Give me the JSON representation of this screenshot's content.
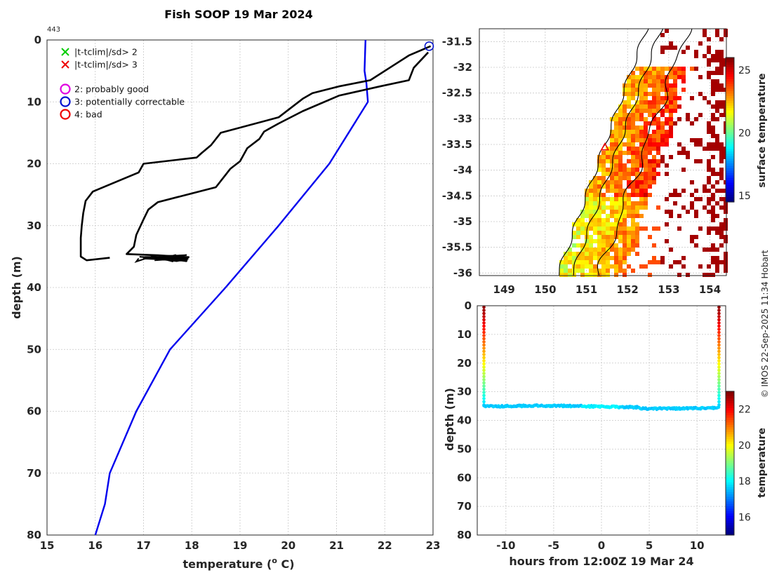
{
  "title": "Fish SOOP 19 Mar 2024",
  "profile_id": "443",
  "credit": "© IMOS 22-Sep-2025 11:34 Hobart",
  "colors": {
    "climatology": "#0000ee",
    "profile": "#000000",
    "flag2": "#e000e0",
    "flag3": "#0010d0",
    "flag4": "#ee0000",
    "flag_sd2": "#00cc00",
    "flag_sd3": "#ee0000",
    "land": "#a40000"
  },
  "legend": [
    {
      "marker": "x",
      "color": "#00cc00",
      "label": "|t-tclim|/sd> 2"
    },
    {
      "marker": "x",
      "color": "#ee0000",
      "label": "|t-tclim|/sd> 3"
    },
    {
      "marker": "o",
      "color": "#e000e0",
      "label": "2: probably good"
    },
    {
      "marker": "o",
      "color": "#0010d0",
      "label": "3: potentially correctable"
    },
    {
      "marker": "o",
      "color": "#ee0000",
      "label": "4: bad"
    }
  ],
  "chart_data": [
    {
      "type": "line",
      "xlabel": "temperature (o C)",
      "xlabel_main": "temperature (",
      "xlabel_sup": "o",
      "xlabel_end": " C)",
      "ylabel": "depth (m)",
      "xlim": [
        15,
        23
      ],
      "ylim": [
        80,
        0
      ],
      "xticks": [
        "15",
        "16",
        "17",
        "18",
        "19",
        "20",
        "21",
        "22",
        "23"
      ],
      "yticks": [
        "0",
        "10",
        "20",
        "30",
        "40",
        "50",
        "60",
        "70",
        "80"
      ],
      "grid": true,
      "series": [
        {
          "role": "climatology",
          "points": [
            [
              21.6,
              0
            ],
            [
              21.58,
              5
            ],
            [
              21.62,
              7
            ],
            [
              21.65,
              10
            ],
            [
              20.85,
              20
            ],
            [
              19.8,
              30
            ],
            [
              18.7,
              40
            ],
            [
              17.55,
              50
            ],
            [
              16.85,
              60
            ],
            [
              16.3,
              70
            ],
            [
              16.2,
              75
            ],
            [
              16.0,
              80
            ]
          ]
        },
        {
          "role": "profile-a",
          "points": [
            [
              22.95,
              1
            ],
            [
              22.5,
              2.5
            ],
            [
              22.2,
              4
            ],
            [
              21.7,
              6.5
            ],
            [
              21.05,
              7.5
            ],
            [
              20.5,
              8.6
            ],
            [
              20.3,
              9.5
            ],
            [
              19.8,
              12.5
            ],
            [
              18.6,
              15
            ],
            [
              18.4,
              17
            ],
            [
              18.2,
              18.3
            ],
            [
              18.1,
              19
            ],
            [
              17.0,
              20
            ],
            [
              16.9,
              21.4
            ],
            [
              15.95,
              24.5
            ],
            [
              15.8,
              26
            ],
            [
              15.75,
              28
            ],
            [
              15.72,
              30
            ],
            [
              15.7,
              32
            ],
            [
              15.7,
              35
            ],
            [
              15.82,
              35.6
            ],
            [
              16.3,
              35.2
            ]
          ]
        },
        {
          "role": "profile-b",
          "points": [
            [
              22.9,
              2
            ],
            [
              22.6,
              4.5
            ],
            [
              22.5,
              6.5
            ],
            [
              21.9,
              7.5
            ],
            [
              21.05,
              9
            ],
            [
              20.3,
              11.5
            ],
            [
              19.8,
              13.5
            ],
            [
              19.5,
              14.8
            ],
            [
              19.4,
              16
            ],
            [
              19.15,
              17.5
            ],
            [
              19.0,
              19.6
            ],
            [
              18.8,
              20.8
            ],
            [
              18.5,
              23.8
            ],
            [
              17.9,
              25
            ],
            [
              17.3,
              26.2
            ],
            [
              17.1,
              27.4
            ],
            [
              17.0,
              29
            ],
            [
              16.85,
              31.5
            ],
            [
              16.8,
              33.4
            ],
            [
              16.65,
              34.6
            ],
            [
              17.3,
              34.8
            ],
            [
              17.95,
              35.1
            ]
          ]
        }
      ],
      "flagged_point": {
        "x": 22.92,
        "y": 1,
        "flag": 3
      }
    },
    {
      "type": "heatmap",
      "title": "",
      "xticks": [
        "149",
        "150",
        "151",
        "152",
        "153",
        "154"
      ],
      "yticks": [
        "-31.5",
        "-32",
        "-32.5",
        "-33",
        "-33.5",
        "-34",
        "-34.5",
        "-35",
        "-35.5",
        "-36"
      ],
      "xlim": [
        148.4,
        154.4
      ],
      "ylim": [
        -36.05,
        -31.25
      ],
      "colorbar_label": "surface temperature",
      "colorbar_ticks": [
        "25",
        "20",
        "15"
      ],
      "colorbar_range": [
        14.5,
        26
      ],
      "station": {
        "lon": 151.45,
        "lat": -33.55
      }
    },
    {
      "type": "scatter",
      "xlabel": "hours from 12:00Z 19 Mar 24",
      "ylabel": "depth (m)",
      "xlim": [
        -13,
        13
      ],
      "ylim": [
        80,
        0
      ],
      "xticks": [
        "-10",
        "-5",
        "0",
        "5",
        "10"
      ],
      "yticks": [
        "0",
        "10",
        "20",
        "30",
        "40",
        "50",
        "60",
        "70",
        "80"
      ],
      "colorbar_label": "temperature",
      "colorbar_ticks": [
        "22",
        "20",
        "18",
        "16"
      ],
      "colorbar_range": [
        15,
        23
      ],
      "descent_hours": [
        -12.3,
        12.3
      ],
      "bottom_depth": 35.2,
      "bottom_temp": 17.6,
      "surface_temp": 22.9
    }
  ]
}
